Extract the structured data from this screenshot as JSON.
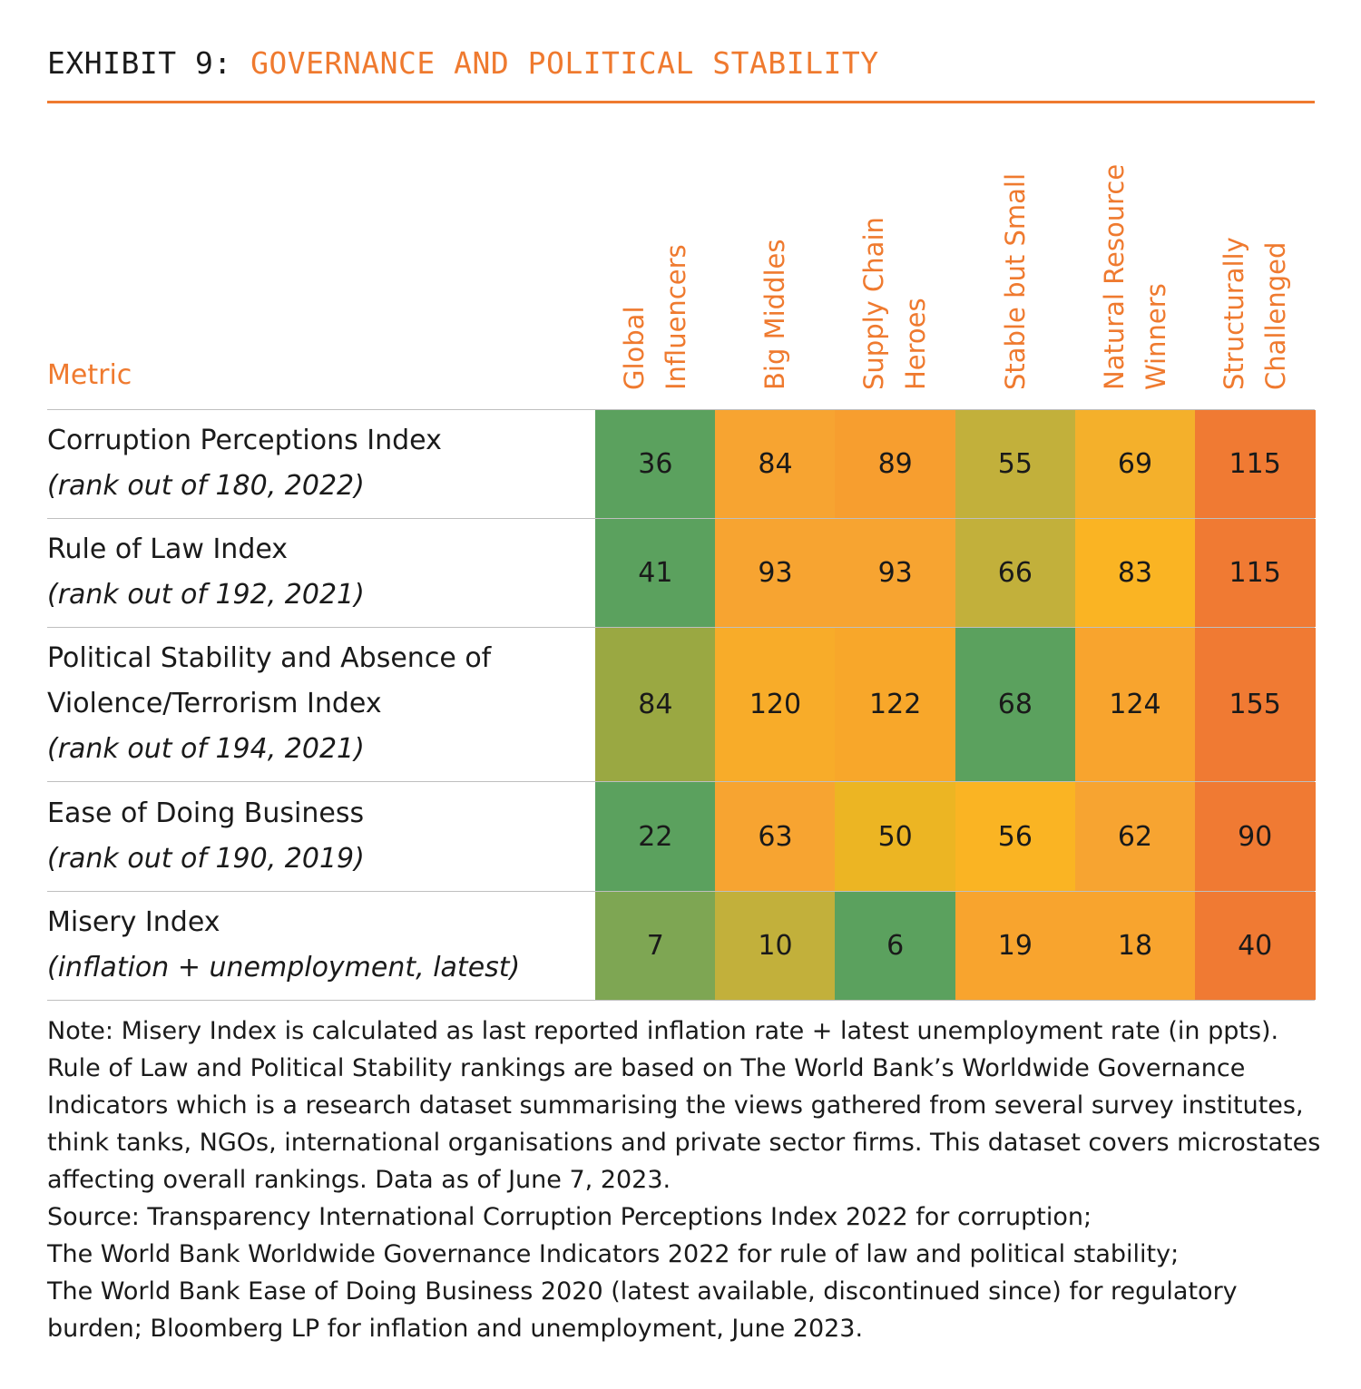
{
  "exhibit": {
    "prefix": "EXHIBIT 9:",
    "name": "GOVERNANCE AND POLITICAL STABILITY"
  },
  "table_header": {
    "metric": "Metric"
  },
  "columns": [
    [
      "Global",
      "Influencers"
    ],
    [
      "Big Middles"
    ],
    [
      "Supply Chain",
      "Heroes"
    ],
    [
      "Stable but Small"
    ],
    [
      "Natural Resource",
      "Winners"
    ],
    [
      "Structurally",
      "Challenged"
    ]
  ],
  "rows": [
    {
      "lines": [
        "Corruption Perceptions Index"
      ],
      "sub": "(rank out of 180, 2022)",
      "values": [
        36,
        84,
        89,
        55,
        69,
        115
      ],
      "colors": [
        "#5ba15e",
        "#f7a431",
        "#f79e2f",
        "#c2b03b",
        "#f4b02b",
        "#f07a33"
      ]
    },
    {
      "lines": [
        "Rule of Law Index"
      ],
      "sub": "(rank out of 192, 2021)",
      "values": [
        41,
        93,
        93,
        66,
        83,
        115
      ],
      "colors": [
        "#5ba15e",
        "#f7a431",
        "#f7a431",
        "#c2b03b",
        "#fab423",
        "#f07a33"
      ]
    },
    {
      "lines": [
        "Political Stability and Absence of",
        "Violence/Terrorism Index"
      ],
      "sub": "(rank out of 194, 2021)",
      "values": [
        84,
        120,
        122,
        68,
        124,
        155
      ],
      "colors": [
        "#9aa842",
        "#f8ac29",
        "#f8a72a",
        "#5ba15e",
        "#f8a42e",
        "#f07a33"
      ]
    },
    {
      "lines": [
        "Ease of Doing Business"
      ],
      "sub": "(rank out of 190, 2019)",
      "values": [
        22,
        63,
        50,
        56,
        62,
        90
      ],
      "colors": [
        "#5ba15e",
        "#f7a431",
        "#ecb523",
        "#fab423",
        "#f7a431",
        "#f07a33"
      ]
    },
    {
      "lines": [
        "Misery Index"
      ],
      "sub": "(inflation + unemployment, latest)",
      "values": [
        7,
        10,
        6,
        19,
        18,
        40
      ],
      "colors": [
        "#7ea653",
        "#c2b03b",
        "#5ba15e",
        "#f8a42e",
        "#f8a42e",
        "#f07a33"
      ]
    }
  ],
  "notes": [
    "Note: Misery Index is calculated as last reported inflation rate + latest unemployment rate (in ppts). Rule of Law and Political Stability rankings are based on The World Bank’s Worldwide Governance Indicators which is a research dataset summarising the views gathered from several survey institutes, think tanks, NGOs, international organisations and private sector firms. This dataset covers microstates affecting overall rankings. Data as of June 7, 2023.",
    "Source: Transparency International Corruption Perceptions Index 2022 for corruption;",
    "The World Bank Worldwide Governance Indicators 2022 for rule of law and political stability;",
    "The World Bank Ease of Doing Business 2020 (latest available, discontinued since) for regulatory burden; Bloomberg LP for inflation and unemployment, June 2023."
  ],
  "chart_data": {
    "type": "heatmap",
    "title": "GOVERNANCE AND POLITICAL STABILITY",
    "categories": [
      "Global Influencers",
      "Big Middles",
      "Supply Chain Heroes",
      "Stable but Small",
      "Natural Resource Winners",
      "Structurally Challenged"
    ],
    "series": [
      {
        "name": "Corruption Perceptions Index (rank out of 180, 2022)",
        "values": [
          36,
          84,
          89,
          55,
          69,
          115
        ]
      },
      {
        "name": "Rule of Law Index (rank out of 192, 2021)",
        "values": [
          41,
          93,
          93,
          66,
          83,
          115
        ]
      },
      {
        "name": "Political Stability and Absence of Violence/Terrorism Index (rank out of 194, 2021)",
        "values": [
          84,
          120,
          122,
          68,
          124,
          155
        ]
      },
      {
        "name": "Ease of Doing Business (rank out of 190, 2019)",
        "values": [
          22,
          63,
          50,
          56,
          62,
          90
        ]
      },
      {
        "name": "Misery Index (inflation + unemployment, latest)",
        "values": [
          7,
          10,
          6,
          19,
          18,
          40
        ]
      }
    ]
  }
}
